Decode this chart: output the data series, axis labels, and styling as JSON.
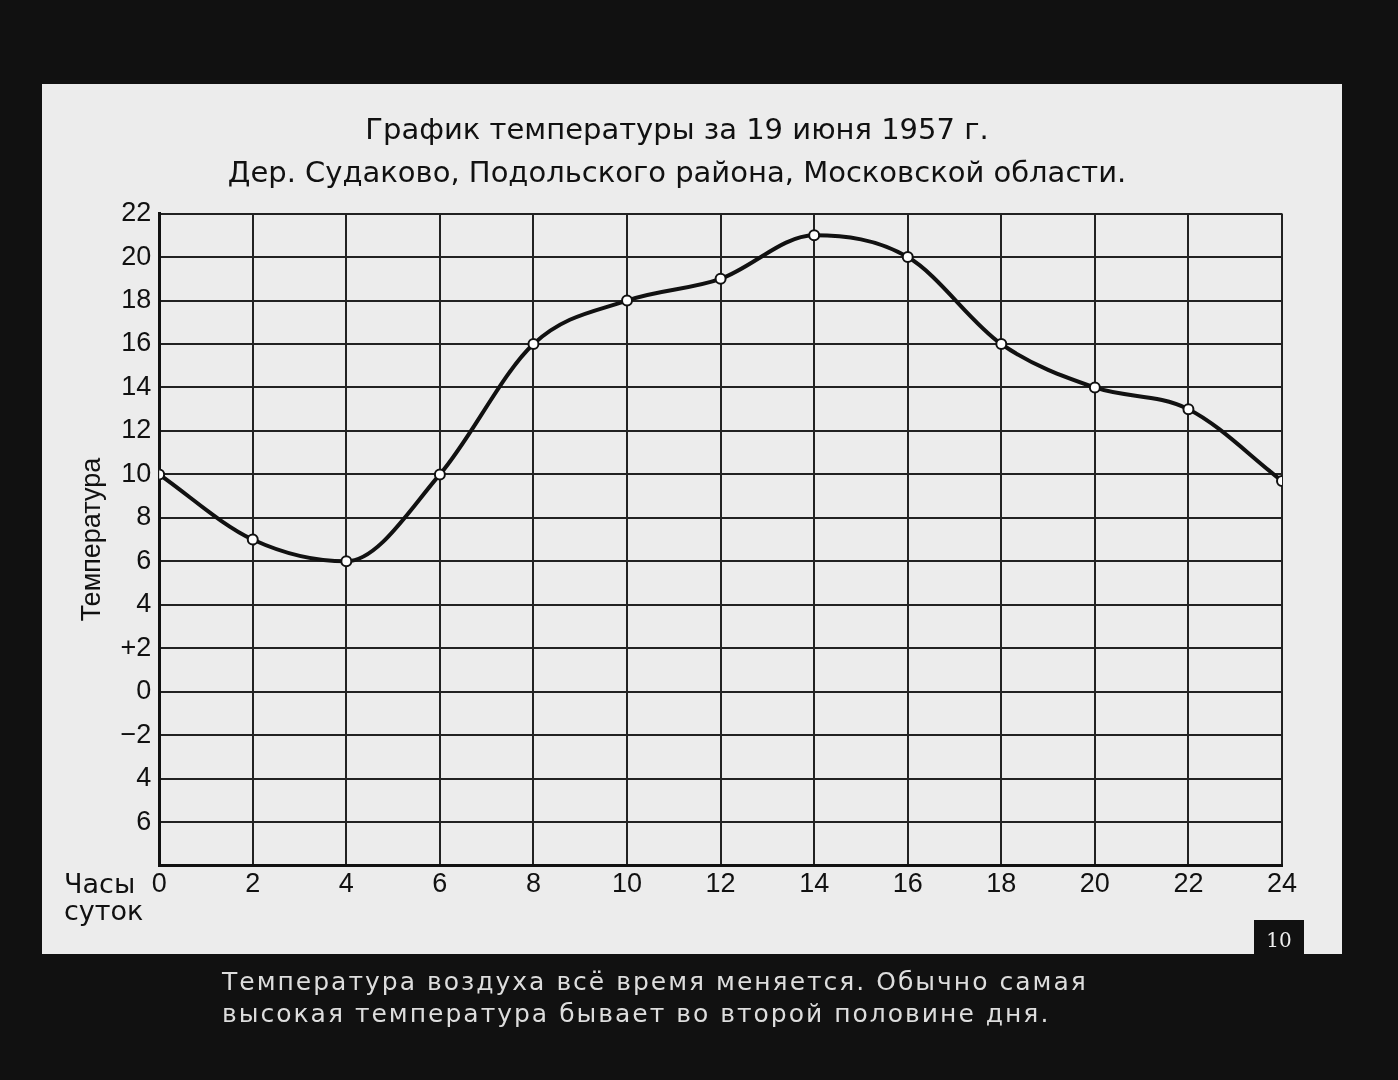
{
  "chart_data": {
    "type": "line",
    "title": "График температуры за 19 июня 1957 г.",
    "subtitle": "Дер. Судаково, Подольского района, Московской области.",
    "xlabel": "Часы суток",
    "ylabel": "Температура",
    "x": [
      0,
      2,
      4,
      6,
      8,
      10,
      12,
      14,
      16,
      18,
      20,
      22,
      24
    ],
    "series": [
      {
        "color": "#111111",
        "values": [
          10,
          7,
          6,
          10,
          16,
          18,
          19,
          21,
          20,
          16,
          14,
          13,
          9.7
        ]
      }
    ],
    "xlim": [
      0,
      24
    ],
    "xticks": [
      0,
      2,
      4,
      6,
      8,
      10,
      12,
      14,
      16,
      18,
      20,
      22,
      24
    ],
    "ylim": [
      -8,
      22
    ],
    "yticks": [
      {
        "value": -8,
        "label": null
      },
      {
        "value": -6,
        "label": "6"
      },
      {
        "value": -4,
        "label": "4"
      },
      {
        "value": -2,
        "label": "−2"
      },
      0,
      {
        "value": 2,
        "label": "+2"
      },
      4,
      6,
      8,
      10,
      12,
      14,
      16,
      18,
      20,
      22
    ],
    "grid": true,
    "legend": false,
    "marker": "circle",
    "line_style": "solid",
    "annotations": [
      "Температура воздуха всё время меняется. Обычно самая высокая температура бывает во второй половине дня.",
      "10"
    ]
  }
}
